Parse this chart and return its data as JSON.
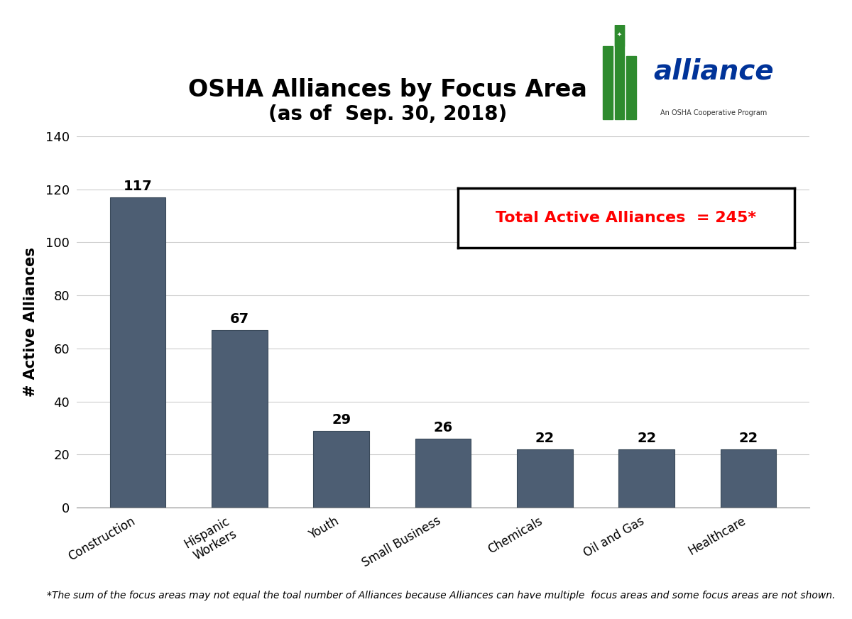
{
  "categories": [
    "Construction",
    "Hispanic\nWorkers",
    "Youth",
    "Small Business",
    "Chemicals",
    "Oil and Gas",
    "Healthcare"
  ],
  "values": [
    117,
    67,
    29,
    26,
    22,
    22,
    22
  ],
  "bar_color": "#4d5e73",
  "bar_edge_color": "#3a4a5a",
  "title_line1": "OSHA Alliances by Focus Area",
  "title_line2": "(as of  Sep. 30, 2018)",
  "ylabel": "# Active Alliances",
  "ylim": [
    0,
    140
  ],
  "yticks": [
    0,
    20,
    40,
    60,
    80,
    100,
    120,
    140
  ],
  "total_text": "Total Active Alliances  = 245*",
  "footnote": "*The sum of the focus areas may not equal the toal number of Alliances because Alliances can have multiple  focus areas and some focus areas are not shown.",
  "background_color": "#ffffff",
  "title_fontsize": 24,
  "title2_fontsize": 20,
  "label_fontsize": 12,
  "bar_label_fontsize": 14,
  "ylabel_fontsize": 15,
  "footnote_fontsize": 10,
  "logo_blue": "#003399",
  "logo_green": "#2e8b2e",
  "total_box_color": "red"
}
